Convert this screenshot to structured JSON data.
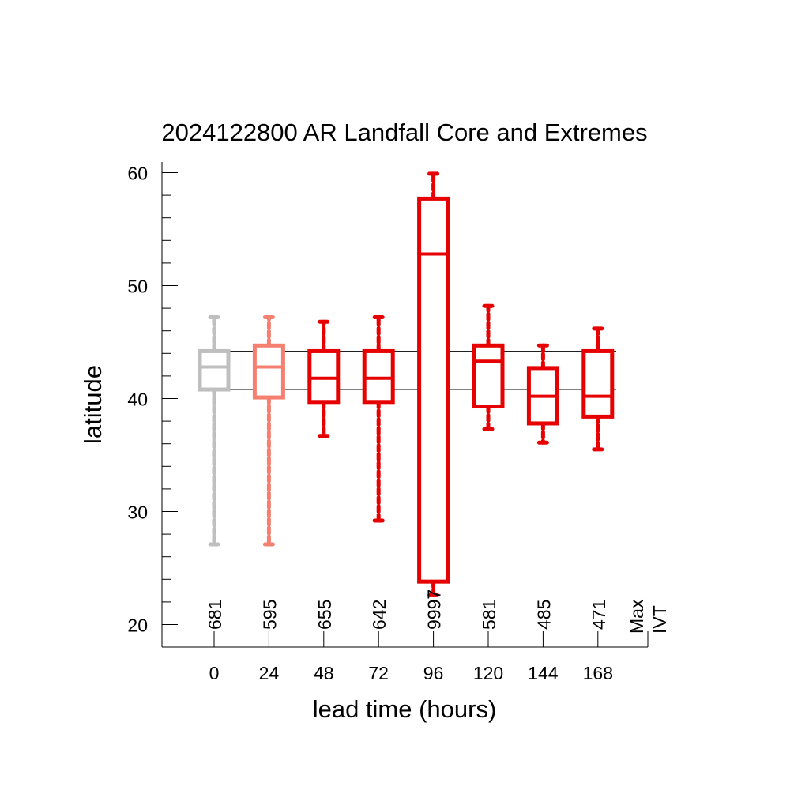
{
  "chart_data": {
    "type": "box",
    "title": "2024122800 AR Landfall Core and Extremes",
    "xlabel": "lead time (hours)",
    "ylabel": "latitude",
    "ylim": [
      18,
      61
    ],
    "yticks": [
      20,
      30,
      40,
      50,
      60
    ],
    "categories": [
      "0",
      "24",
      "48",
      "72",
      "96",
      "120",
      "144",
      "168"
    ],
    "side_label": [
      "Max",
      "IVT"
    ],
    "reference_lines": [
      44.2,
      40.8
    ],
    "boxes": [
      {
        "lead": "0",
        "whisker_low": 27.1,
        "q1": 40.8,
        "median": 42.8,
        "q3": 44.2,
        "whisker_high": 47.2,
        "max_ivt": "681",
        "color": "#bfbfbf"
      },
      {
        "lead": "24",
        "whisker_low": 27.1,
        "q1": 40.1,
        "median": 42.8,
        "q3": 44.7,
        "whisker_high": 47.2,
        "max_ivt": "595",
        "color": "#f58070"
      },
      {
        "lead": "48",
        "whisker_low": 36.7,
        "q1": 39.7,
        "median": 41.8,
        "q3": 44.2,
        "whisker_high": 46.8,
        "max_ivt": "655",
        "color": "#e60000"
      },
      {
        "lead": "72",
        "whisker_low": 29.2,
        "q1": 39.7,
        "median": 41.8,
        "q3": 44.2,
        "whisker_high": 47.2,
        "max_ivt": "642",
        "color": "#e60000"
      },
      {
        "lead": "96",
        "whisker_low": 22.6,
        "q1": 23.8,
        "median": 52.8,
        "q3": 57.7,
        "whisker_high": 59.9,
        "max_ivt": "9997",
        "color": "#e60000"
      },
      {
        "lead": "120",
        "whisker_low": 37.3,
        "q1": 39.3,
        "median": 43.3,
        "q3": 44.7,
        "whisker_high": 48.2,
        "max_ivt": "581",
        "color": "#e60000"
      },
      {
        "lead": "144",
        "whisker_low": 36.1,
        "q1": 37.8,
        "median": 40.2,
        "q3": 42.7,
        "whisker_high": 44.7,
        "max_ivt": "485",
        "color": "#e60000"
      },
      {
        "lead": "168",
        "whisker_low": 35.5,
        "q1": 38.4,
        "median": 40.2,
        "q3": 44.2,
        "whisker_high": 46.2,
        "max_ivt": "471",
        "color": "#e60000"
      }
    ]
  }
}
